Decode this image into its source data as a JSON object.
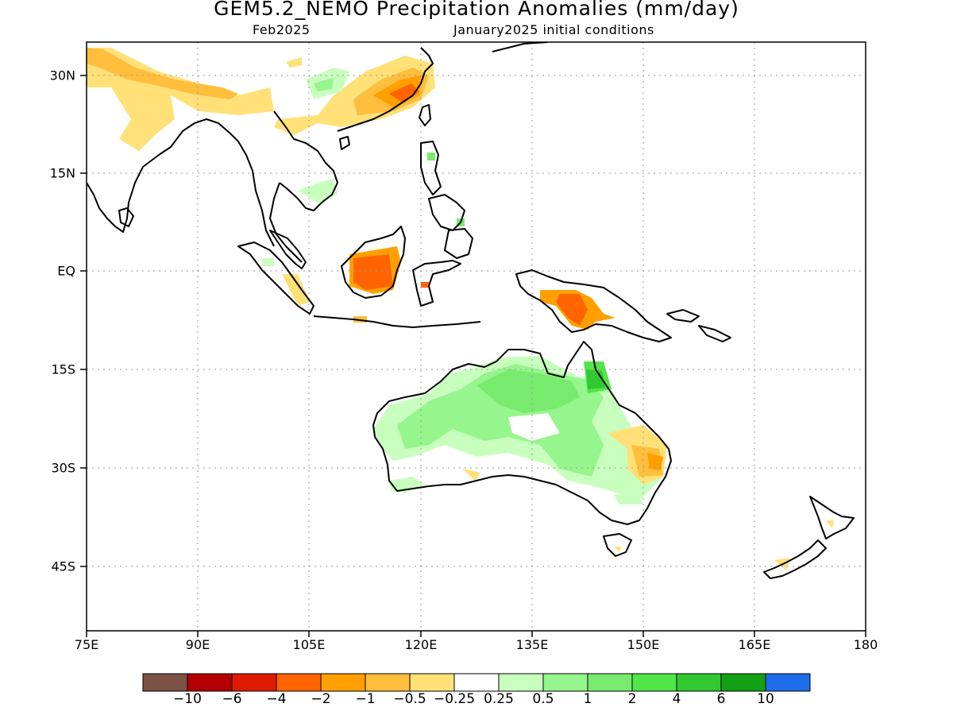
{
  "title": "GEM5.2_NEMO Precipitation Anomalies (mm/day)",
  "subtitle_left": "Feb2025",
  "subtitle_right": "January2025 initial conditions",
  "lat_labels": [
    "30N",
    "15N",
    "EQ",
    "15S",
    "30S",
    "45S"
  ],
  "lon_labels": [
    "75E",
    "90E",
    "105E",
    "120E",
    "135E",
    "150E",
    "165E",
    "180"
  ],
  "colorbar": {
    "colors": [
      "#7b5244",
      "#b40000",
      "#de1b00",
      "#ff6400",
      "#ffa000",
      "#ffbe3c",
      "#ffe178",
      "#ffffff",
      "#c8ffbe",
      "#96f58c",
      "#78eb6e",
      "#50e648",
      "#32c832",
      "#14a014",
      "#1e6eeb"
    ],
    "labels": [
      "−10",
      "−6",
      "−4",
      "−2",
      "−1",
      "−0.5",
      "−0.25",
      "0.25",
      "0.5",
      "1",
      "2",
      "4",
      "6",
      "10"
    ]
  }
}
